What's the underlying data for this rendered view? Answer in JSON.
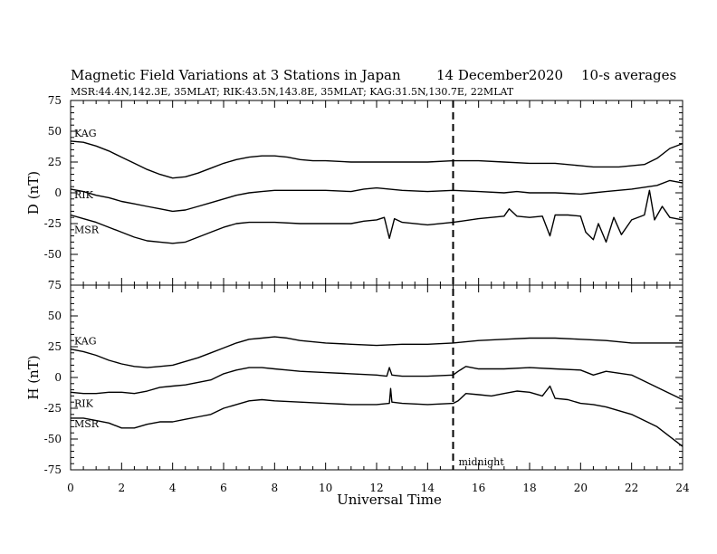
{
  "chart_data": {
    "type": "line",
    "title": "Magnetic Field Variations at 3 Stations in Japan",
    "date": "14 December2020",
    "averaging": "10-s averages",
    "subtitle": "MSR:44.4N,142.3E, 35MLAT;  RIK:43.5N,143.8E, 35MLAT;  KAG:31.5N,130.7E, 22MLAT",
    "xlabel": "Universal Time",
    "xlim": [
      0,
      24
    ],
    "x_ticks": [
      "0",
      "2",
      "4",
      "6",
      "8",
      "10",
      "12",
      "14",
      "16",
      "18",
      "20",
      "22",
      "24"
    ],
    "grid": false,
    "annotation": {
      "text": "midnight",
      "x": 15
    },
    "panels": [
      {
        "ylabel": "D (nT)",
        "ylim": [
          -75,
          75
        ],
        "y_ticks": [
          "75",
          "50",
          "25",
          "0",
          "-25",
          "-50",
          "-75"
        ],
        "series": [
          {
            "name": "KAG",
            "x": [
              0,
              0.5,
              1,
              1.5,
              2,
              2.5,
              3,
              3.5,
              4,
              4.5,
              5,
              5.5,
              6,
              6.5,
              7,
              7.5,
              8,
              8.5,
              9,
              9.5,
              10,
              11,
              12,
              13,
              14,
              15,
              16,
              17,
              18,
              19,
              20,
              20.5,
              21,
              21.5,
              22,
              22.5,
              23,
              23.5,
              24
            ],
            "y": [
              42,
              41,
              38,
              34,
              29,
              24,
              19,
              15,
              12,
              13,
              16,
              20,
              24,
              27,
              29,
              30,
              30,
              29,
              27,
              26,
              26,
              25,
              25,
              25,
              25,
              26,
              26,
              25,
              24,
              24,
              22,
              21,
              21,
              21,
              22,
              23,
              28,
              36,
              40
            ]
          },
          {
            "name": "RIK",
            "x": [
              0,
              0.5,
              1,
              1.5,
              2,
              2.5,
              3,
              3.5,
              4,
              4.5,
              5,
              5.5,
              6,
              6.5,
              7,
              7.5,
              8,
              9,
              10,
              11,
              11.5,
              12,
              12.5,
              13,
              14,
              15,
              16,
              17,
              17.5,
              18,
              19,
              20,
              20.5,
              21,
              22,
              23,
              23.5,
              24
            ],
            "y": [
              3,
              1,
              -2,
              -4,
              -7,
              -9,
              -11,
              -13,
              -15,
              -14,
              -11,
              -8,
              -5,
              -2,
              0,
              1,
              2,
              2,
              2,
              1,
              3,
              4,
              3,
              2,
              1,
              2,
              1,
              0,
              1,
              0,
              0,
              -1,
              0,
              1,
              3,
              6,
              10,
              8
            ]
          },
          {
            "name": "MSR",
            "x": [
              0,
              0.5,
              1,
              1.5,
              2,
              2.5,
              3,
              3.5,
              4,
              4.5,
              5,
              5.5,
              6,
              6.5,
              7,
              7.5,
              8,
              9,
              10,
              11,
              11.5,
              12,
              12.3,
              12.5,
              12.7,
              13,
              14,
              15,
              16,
              17,
              17.2,
              17.5,
              18,
              18.5,
              18.8,
              19,
              19.5,
              20,
              20.2,
              20.5,
              20.7,
              21,
              21.3,
              21.6,
              22,
              22.5,
              22.7,
              22.9,
              23.2,
              23.5,
              24
            ],
            "y": [
              -18,
              -21,
              -24,
              -28,
              -32,
              -36,
              -39,
              -40,
              -41,
              -40,
              -36,
              -32,
              -28,
              -25,
              -24,
              -24,
              -24,
              -25,
              -25,
              -25,
              -23,
              -22,
              -20,
              -37,
              -21,
              -24,
              -26,
              -24,
              -21,
              -19,
              -13,
              -19,
              -20,
              -19,
              -35,
              -18,
              -18,
              -19,
              -32,
              -38,
              -25,
              -40,
              -20,
              -34,
              -22,
              -18,
              2,
              -22,
              -11,
              -20,
              -22
            ]
          }
        ]
      },
      {
        "ylabel": "H (nT)",
        "ylim": [
          -75,
          75
        ],
        "y_ticks": [
          "75",
          "50",
          "25",
          "0",
          "-25",
          "-50",
          "-75"
        ],
        "series": [
          {
            "name": "KAG",
            "x": [
              0,
              0.5,
              1,
              1.5,
              2,
              2.5,
              3,
              3.5,
              4,
              4.5,
              5,
              5.5,
              6,
              6.5,
              7,
              7.5,
              8,
              8.5,
              9,
              10,
              11,
              12,
              13,
              14,
              15,
              16,
              17,
              18,
              19,
              20,
              21,
              22,
              23,
              24
            ],
            "y": [
              23,
              21,
              18,
              14,
              11,
              9,
              8,
              9,
              10,
              13,
              16,
              20,
              24,
              28,
              31,
              32,
              33,
              32,
              30,
              28,
              27,
              26,
              27,
              27,
              28,
              30,
              31,
              32,
              32,
              31,
              30,
              28,
              28,
              28
            ]
          },
          {
            "name": "RIK",
            "x": [
              0,
              0.5,
              1,
              1.5,
              2,
              2.5,
              3,
              3.5,
              4,
              4.5,
              5,
              5.5,
              6,
              6.5,
              7,
              7.5,
              8,
              8.5,
              9,
              10,
              11,
              12,
              12.4,
              12.5,
              12.6,
              13,
              14,
              15,
              15.2,
              15.5,
              16,
              17,
              18,
              19,
              20,
              20.5,
              21,
              22,
              23,
              24
            ],
            "y": [
              -12,
              -13,
              -13,
              -12,
              -12,
              -13,
              -11,
              -8,
              -7,
              -6,
              -4,
              -2,
              3,
              6,
              8,
              8,
              7,
              6,
              5,
              4,
              3,
              2,
              1,
              8,
              2,
              1,
              1,
              2,
              5,
              9,
              7,
              7,
              8,
              7,
              6,
              2,
              5,
              2,
              -8,
              -18
            ]
          },
          {
            "name": "MSR",
            "x": [
              0,
              0.5,
              1,
              1.5,
              2,
              2.5,
              3,
              3.5,
              4,
              4.5,
              5,
              5.5,
              6,
              6.5,
              7,
              7.5,
              8,
              9,
              10,
              11,
              12,
              12.5,
              12.55,
              12.6,
              13,
              14,
              15,
              15.2,
              15.5,
              16,
              16.5,
              17,
              17.5,
              18,
              18.5,
              18.8,
              19,
              19.5,
              20,
              20.5,
              21,
              22,
              23,
              24
            ],
            "y": [
              -33,
              -33,
              -35,
              -37,
              -41,
              -41,
              -38,
              -36,
              -36,
              -34,
              -32,
              -30,
              -25,
              -22,
              -19,
              -18,
              -19,
              -20,
              -21,
              -22,
              -22,
              -21,
              -9,
              -20,
              -21,
              -22,
              -21,
              -19,
              -13,
              -14,
              -15,
              -13,
              -11,
              -12,
              -15,
              -7,
              -17,
              -18,
              -21,
              -22,
              -24,
              -30,
              -40,
              -56
            ]
          }
        ]
      }
    ]
  }
}
